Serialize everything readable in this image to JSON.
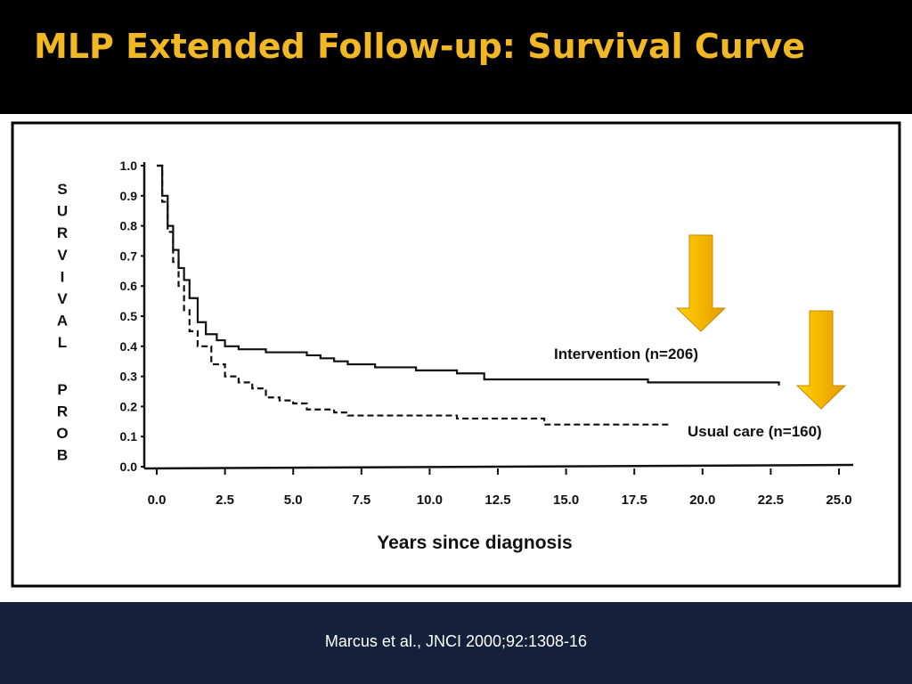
{
  "slide": {
    "title": "MLP Extended Follow-up: Survival Curve",
    "citation": "Marcus et al., JNCI 2000;92:1308-16"
  },
  "colors": {
    "title": "#f2b824",
    "footer_band": "#15203a",
    "arrow_light": "#ffd200",
    "arrow_dark": "#e89a00"
  },
  "chart_data": {
    "type": "line",
    "title": "",
    "xlabel": "Years since diagnosis",
    "ylabel": "SURVIVAL PROB",
    "xlim": [
      0,
      25
    ],
    "ylim": [
      0,
      1
    ],
    "x_ticks": [
      "0.0",
      "2.5",
      "5.0",
      "7.5",
      "10.0",
      "12.5",
      "15.0",
      "17.5",
      "20.0",
      "22.5",
      "25.0"
    ],
    "y_ticks": [
      "0.0",
      "0.1",
      "0.2",
      "0.3",
      "0.4",
      "0.5",
      "0.6",
      "0.7",
      "0.8",
      "0.9",
      "1.0"
    ],
    "grid": false,
    "series": [
      {
        "name": "Intervention (n=206)",
        "style": "solid",
        "points": [
          [
            0,
            1.0
          ],
          [
            0.2,
            0.9
          ],
          [
            0.4,
            0.8
          ],
          [
            0.6,
            0.72
          ],
          [
            0.8,
            0.66
          ],
          [
            1.0,
            0.62
          ],
          [
            1.2,
            0.56
          ],
          [
            1.5,
            0.48
          ],
          [
            1.8,
            0.44
          ],
          [
            2.2,
            0.42
          ],
          [
            2.5,
            0.4
          ],
          [
            3.0,
            0.39
          ],
          [
            4.0,
            0.38
          ],
          [
            5.5,
            0.37
          ],
          [
            6.0,
            0.36
          ],
          [
            6.5,
            0.35
          ],
          [
            7.0,
            0.34
          ],
          [
            8.0,
            0.33
          ],
          [
            9.5,
            0.32
          ],
          [
            11.0,
            0.31
          ],
          [
            12.0,
            0.29
          ],
          [
            14.0,
            0.29
          ],
          [
            17.0,
            0.29
          ],
          [
            18.0,
            0.28
          ],
          [
            20.0,
            0.28
          ],
          [
            22.8,
            0.27
          ]
        ]
      },
      {
        "name": "Usual care (n=160)",
        "style": "dashed",
        "points": [
          [
            0,
            1.0
          ],
          [
            0.2,
            0.88
          ],
          [
            0.4,
            0.78
          ],
          [
            0.6,
            0.68
          ],
          [
            0.8,
            0.6
          ],
          [
            1.0,
            0.52
          ],
          [
            1.2,
            0.45
          ],
          [
            1.5,
            0.4
          ],
          [
            2.0,
            0.34
          ],
          [
            2.5,
            0.3
          ],
          [
            3.0,
            0.28
          ],
          [
            3.5,
            0.26
          ],
          [
            4.0,
            0.23
          ],
          [
            4.5,
            0.22
          ],
          [
            5.0,
            0.21
          ],
          [
            5.5,
            0.19
          ],
          [
            6.5,
            0.18
          ],
          [
            7.0,
            0.17
          ],
          [
            8.0,
            0.17
          ],
          [
            10.0,
            0.17
          ],
          [
            11.0,
            0.16
          ],
          [
            12.5,
            0.16
          ],
          [
            14.0,
            0.16
          ],
          [
            14.2,
            0.14
          ],
          [
            16.0,
            0.14
          ],
          [
            18.8,
            0.14
          ]
        ]
      }
    ],
    "annotations": [
      {
        "text": "Intervention (n=206)",
        "target_series": 0
      },
      {
        "text": "Usual care (n=160)",
        "target_series": 1
      }
    ]
  }
}
